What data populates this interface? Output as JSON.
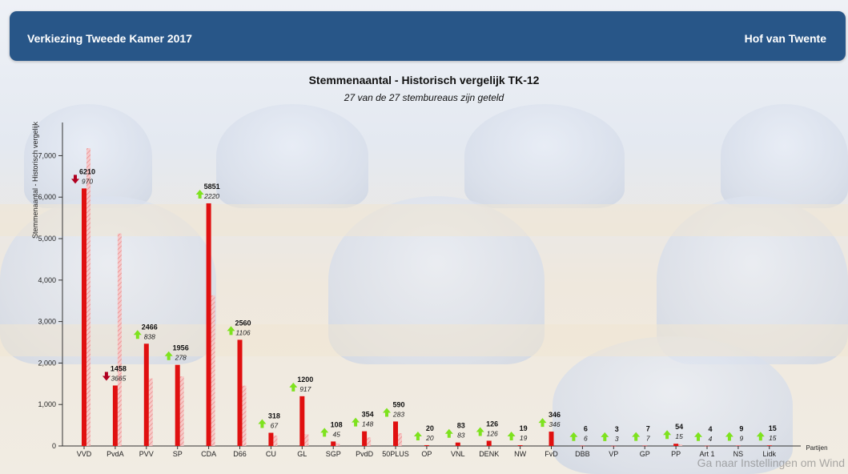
{
  "header": {
    "left_title": "Verkiezing Tweede Kamer 2017",
    "right_title": "Hof van Twente"
  },
  "watermark": "Ga naar Instellingen om Wind",
  "colors": {
    "header_bg": "#285688",
    "bar_current": "#e01010",
    "bar_previous": "#f08a8a",
    "arrow_up": "#7ee21e",
    "arrow_down": "#b00020"
  },
  "chart_data": {
    "type": "bar",
    "title": "Stemmenaantal - Historisch vergelijk TK-12",
    "subtitle": "27 van de 27 stembureaus zijn geteld",
    "ylabel": "Stemmenaantal - Historisch vergelijk",
    "xlabel": "Partijen",
    "ylim": [
      0,
      7800
    ],
    "yticks": [
      0,
      1000,
      2000,
      3000,
      4000,
      5000,
      6000,
      7000
    ],
    "ytick_labels": [
      "0",
      "1,000",
      "2,000",
      "3,000",
      "4,000",
      "5,000",
      "6,000",
      "7,000"
    ],
    "grid": false,
    "categories": [
      "VVD",
      "PvdA",
      "PVV",
      "SP",
      "CDA",
      "D66",
      "CU",
      "GL",
      "SGP",
      "PvdD",
      "50PLUS",
      "OP",
      "VNL",
      "DENK",
      "NW",
      "FvD",
      "DBB",
      "VP",
      "GP",
      "PP",
      "Art 1",
      "NS",
      "Lidk"
    ],
    "series": [
      {
        "values": [
          6210,
          1458,
          2466,
          1956,
          5851,
          2560,
          318,
          1200,
          108,
          354,
          590,
          20,
          83,
          126,
          19,
          346,
          6,
          3,
          7,
          54,
          4,
          9,
          15
        ],
        "labels": [
          "6210",
          "1458",
          "2466",
          "1956",
          "5851",
          "2560",
          "318",
          "1200",
          "108",
          "354",
          "590",
          "20",
          "83",
          "126",
          "19",
          "346",
          "6",
          "3",
          "7",
          "54",
          "4",
          "9",
          "15"
        ]
      },
      {
        "values": [
          7180,
          5123,
          1628,
          1678,
          3631,
          1454,
          251,
          283,
          63,
          206,
          307,
          0,
          0,
          0,
          0,
          0,
          0,
          0,
          0,
          39,
          0,
          0,
          0
        ]
      }
    ],
    "changes": [
      "970",
      "3665",
      "838",
      "278",
      "2220",
      "1106",
      "67",
      "917",
      "45",
      "148",
      "283",
      "20",
      "83",
      "126",
      "19",
      "346",
      "6",
      "3",
      "7",
      "15",
      "4",
      "9",
      "15"
    ],
    "directions": [
      "down",
      "down",
      "up",
      "up",
      "up",
      "up",
      "up",
      "up",
      "up",
      "up",
      "up",
      "up",
      "up",
      "up",
      "up",
      "up",
      "up",
      "up",
      "up",
      "up",
      "up",
      "up",
      "up"
    ]
  }
}
